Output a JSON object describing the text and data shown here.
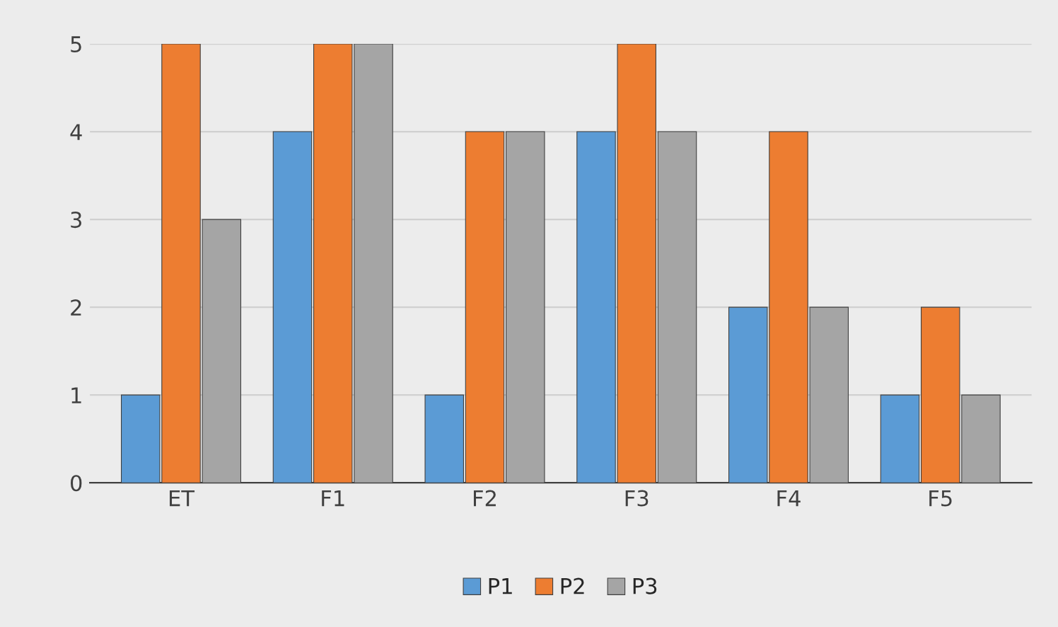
{
  "chart_data": {
    "type": "bar",
    "categories": [
      "ET",
      "F1",
      "F2",
      "F3",
      "F4",
      "F5"
    ],
    "series": [
      {
        "name": "P1",
        "color": "#5b9bd5",
        "values": [
          1,
          4,
          1,
          4,
          2,
          1
        ]
      },
      {
        "name": "P2",
        "color": "#ed7d31",
        "values": [
          5,
          5,
          4,
          5,
          4,
          2
        ]
      },
      {
        "name": "P3",
        "color": "#a5a5a5",
        "values": [
          3,
          5,
          4,
          4,
          2,
          1
        ]
      }
    ],
    "ylim": [
      0,
      5
    ],
    "yticks": [
      0,
      1,
      2,
      3,
      4,
      5
    ],
    "grid": "y",
    "legend": "bottom"
  }
}
